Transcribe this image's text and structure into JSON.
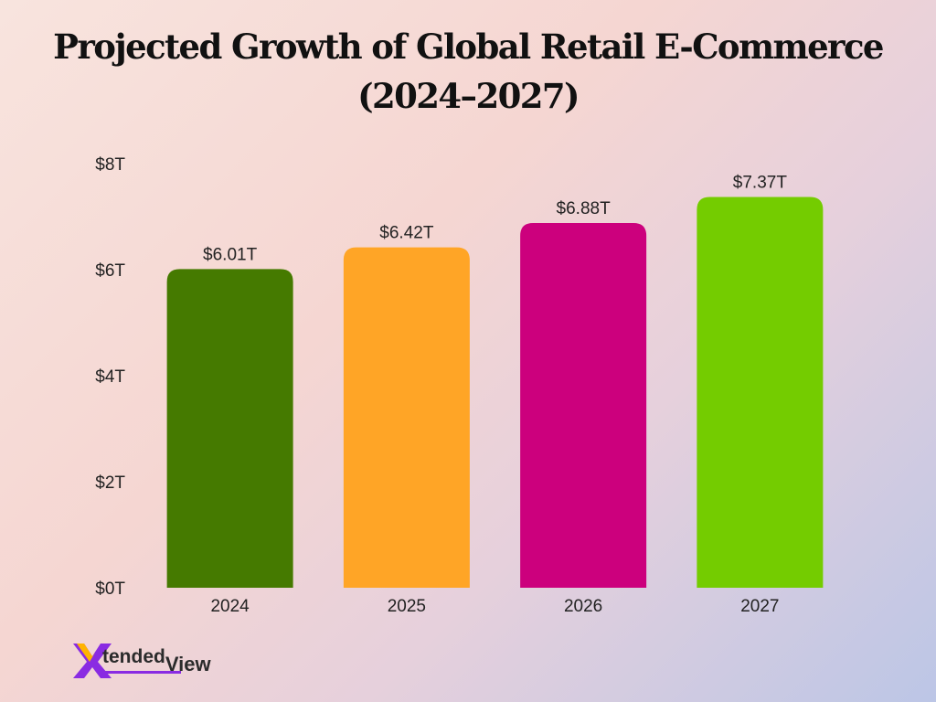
{
  "title_line1": "Projected Growth of Global Retail E-Commerce",
  "title_line2": "(2024–2027)",
  "colors": {
    "bar_2024": "#457a00",
    "bar_2025": "#ffa526",
    "bar_2026": "#cc007d",
    "bar_2027": "#74cc00",
    "logo_accent": "#8a2be2"
  },
  "chart_data": {
    "type": "bar",
    "categories": [
      "2024",
      "2025",
      "2026",
      "2027"
    ],
    "values": [
      6.01,
      6.42,
      6.88,
      7.37
    ],
    "value_labels": [
      "$6.01T",
      "$6.42T",
      "$6.88T",
      "$7.37T"
    ],
    "bar_colors": [
      "#457a00",
      "#ffa526",
      "#cc007d",
      "#74cc00"
    ],
    "yticks": [
      0,
      2,
      4,
      6,
      8
    ],
    "ytick_labels": [
      "$0T",
      "$2T",
      "$4T",
      "$6T",
      "$8T"
    ],
    "ylim": [
      0,
      8
    ],
    "grid": false,
    "legend": "none"
  },
  "logo": {
    "part1": "tended",
    "part2": "View"
  }
}
